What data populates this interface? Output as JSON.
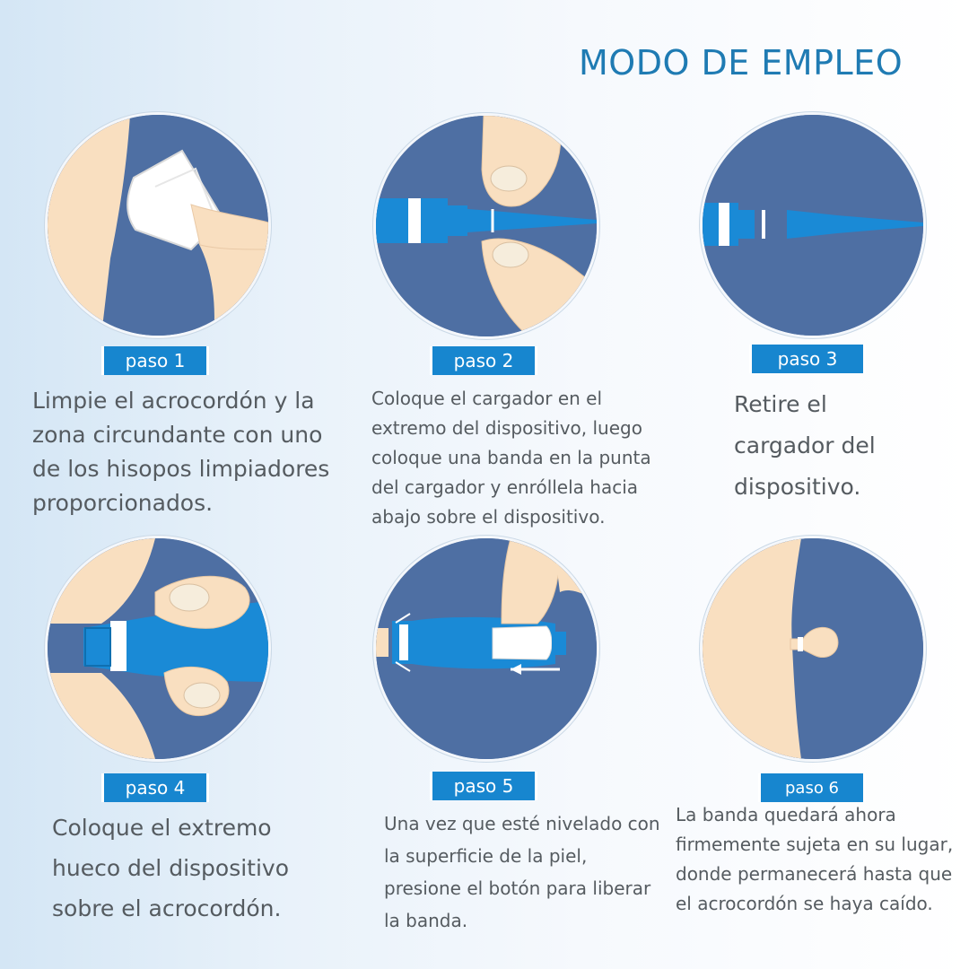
{
  "title": "MODO DE EMPLEO",
  "steps": [
    {
      "label": "paso 1",
      "text": "Limpie el acrocordón y la zona circundante con uno de los hisopos limpiadores proporcionados."
    },
    {
      "label": "paso 2",
      "text": "Coloque el cargador en el extremo del dispositivo, luego coloque una banda en la punta del cargador y enróllela hacia abajo sobre el dispositivo."
    },
    {
      "label": "paso 3",
      "text": "Retire el cargador del dispositivo."
    },
    {
      "label": "paso 4",
      "text": "Coloque el extremo hueco del dispositivo sobre el acrocordón."
    },
    {
      "label": "paso 5",
      "text": "Una vez que esté nivelado con la superficie de la piel, presione el botón para liberar la banda."
    },
    {
      "label": "paso 6",
      "text": "La banda quedará ahora firmemente sujeta en su lugar, donde permanecerá hasta que el acrocordón se haya caído."
    }
  ],
  "colors": {
    "title": "#1f7bb3",
    "badge": "#1786cf",
    "illustration_bg": "#4e6fa3",
    "skin": "#f9dfc0",
    "device": "#1a8ad6",
    "text": "#555b60"
  }
}
